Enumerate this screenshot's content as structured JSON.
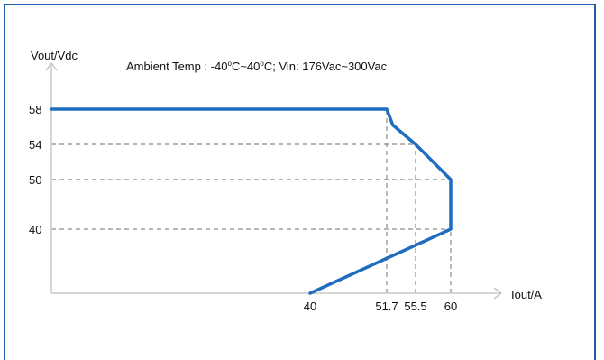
{
  "chart_data": {
    "type": "line",
    "title_parts": {
      "prefix": "Ambient Temp : -40",
      "sup1": "o",
      "mid": "C~40",
      "sup2": "o",
      "suffix": "C; Vin: 176Vac~300Vac"
    },
    "xlabel": "Iout/A",
    "ylabel": "Vout/Vdc",
    "x_ticks": [
      "40",
      "51.7",
      "55.5",
      "60"
    ],
    "y_ticks": [
      "58",
      "54",
      "50",
      "40"
    ],
    "series": [
      {
        "points": [
          [
            30,
            58
          ],
          [
            51.7,
            58
          ],
          [
            52.5,
            56.2
          ],
          [
            55.5,
            54
          ],
          [
            60,
            50
          ],
          [
            60,
            40
          ],
          [
            40,
            24.5
          ]
        ]
      }
    ],
    "reference_lines": [
      {
        "from": [
          30,
          54
        ],
        "to": [
          55.5,
          54
        ]
      },
      {
        "from": [
          30,
          50
        ],
        "to": [
          60,
          50
        ]
      },
      {
        "from": [
          30,
          40
        ],
        "to": [
          60,
          40
        ]
      },
      {
        "from": [
          51.7,
          24.5
        ],
        "to": [
          51.7,
          58
        ]
      },
      {
        "from": [
          55.5,
          24.5
        ],
        "to": [
          55.5,
          54
        ]
      },
      {
        "from": [
          60,
          24.5
        ],
        "to": [
          60,
          40
        ]
      }
    ],
    "grid": false,
    "colors": {
      "line": "#1f6dbf",
      "axis": "#c8c8c8",
      "dash": "#8a8a8a",
      "frame": "#1f5fa8"
    }
  }
}
